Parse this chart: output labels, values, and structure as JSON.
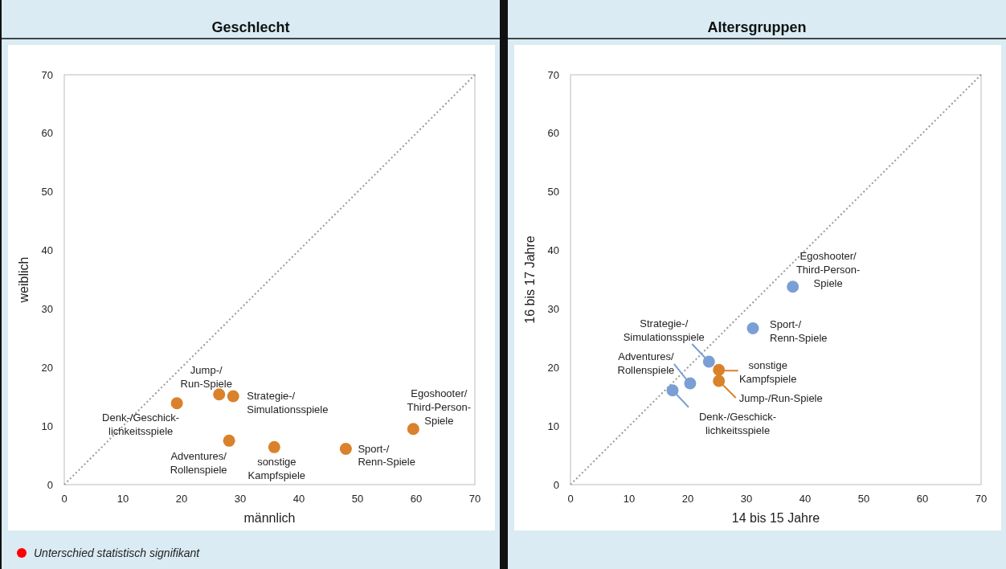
{
  "chart_data": [
    {
      "type": "scatter",
      "title": "Geschlecht",
      "xlabel": "männlich",
      "ylabel": "weiblich",
      "xlim": [
        0,
        70
      ],
      "ylim": [
        0,
        70
      ],
      "xticks": [
        0,
        10,
        20,
        30,
        40,
        50,
        60,
        70
      ],
      "yticks": [
        0,
        10,
        20,
        30,
        40,
        50,
        60,
        70
      ],
      "grid": false,
      "series": [
        {
          "marker": "circle",
          "x": [
            19.2,
            26.4,
            28.8,
            28.1,
            35.8,
            48.0,
            59.5
          ],
          "values": [
            13.9,
            15.4,
            15.1,
            7.5,
            6.4,
            6.1,
            9.5
          ],
          "colors": [
            "#d9822b",
            "#d9822b",
            "#d9822b",
            "#d9822b",
            "#d9822b",
            "#d9822b",
            "#d9822b"
          ]
        },
        {
          "type": "line",
          "x": [
            0,
            70
          ],
          "values": [
            0,
            70
          ],
          "color": "#999999",
          "line_style": "dotted"
        }
      ],
      "annotations": [
        {
          "text": "Denk-/Geschick-\nlichkeitsspiele",
          "x": 19.2,
          "y": 13.9
        },
        {
          "text": "Jump-/\nRun-Spiele",
          "x": 26.4,
          "y": 15.4
        },
        {
          "text": "Strategie-/\nSimulationsspiele",
          "x": 28.8,
          "y": 15.1
        },
        {
          "text": "Adventures/\nRollenspiele",
          "x": 28.1,
          "y": 7.5
        },
        {
          "text": "sonstige\nKampfspiele",
          "x": 35.8,
          "y": 6.4
        },
        {
          "text": "Sport-/\nRenn-Spiele",
          "x": 48.0,
          "y": 6.1
        },
        {
          "text": "Egoshooter/\nThird-Person-\nSpiele",
          "x": 59.5,
          "y": 9.5
        },
        "Unterschied statistisch signifikant"
      ]
    },
    {
      "type": "scatter",
      "title": "Altersgruppen",
      "xlabel": "14 bis 15 Jahre",
      "ylabel": "16 bis 17 Jahre",
      "xlim": [
        0,
        70
      ],
      "ylim": [
        0,
        70
      ],
      "xticks": [
        0,
        10,
        20,
        30,
        40,
        50,
        60,
        70
      ],
      "yticks": [
        0,
        10,
        20,
        30,
        40,
        50,
        60,
        70
      ],
      "grid": false,
      "series": [
        {
          "marker": "circle",
          "x": [
            17.4,
            25.3,
            23.6,
            20.4,
            25.3,
            31.1,
            37.9
          ],
          "values": [
            16.1,
            17.7,
            21.0,
            17.3,
            19.6,
            26.7,
            33.8
          ],
          "colors": [
            "#7b9fd4",
            "#d9822b",
            "#7b9fd4",
            "#7b9fd4",
            "#d9822b",
            "#7b9fd4",
            "#7b9fd4"
          ]
        },
        {
          "type": "line",
          "x": [
            0,
            70
          ],
          "values": [
            0,
            70
          ],
          "color": "#999999",
          "line_style": "dotted"
        }
      ],
      "annotations": [
        {
          "text": "Denk-/Geschick-\nlichkeitsspiele",
          "x": 17.4,
          "y": 16.1
        },
        {
          "text": "Jump-/Run-Spiele",
          "x": 25.3,
          "y": 17.7
        },
        {
          "text": "Strategie-/\nSimulationsspiele",
          "x": 23.6,
          "y": 21.0
        },
        {
          "text": "Adventures/\nRollenspiele",
          "x": 20.4,
          "y": 17.3
        },
        {
          "text": "sonstige\nKampfspiele",
          "x": 25.3,
          "y": 19.6
        },
        {
          "text": "Sport-/\nRenn-Spiele",
          "x": 31.1,
          "y": 26.7
        },
        {
          "text": "Egoshooter/\nThird-Person-\nSpiele",
          "x": 37.9,
          "y": 33.8
        }
      ]
    }
  ]
}
